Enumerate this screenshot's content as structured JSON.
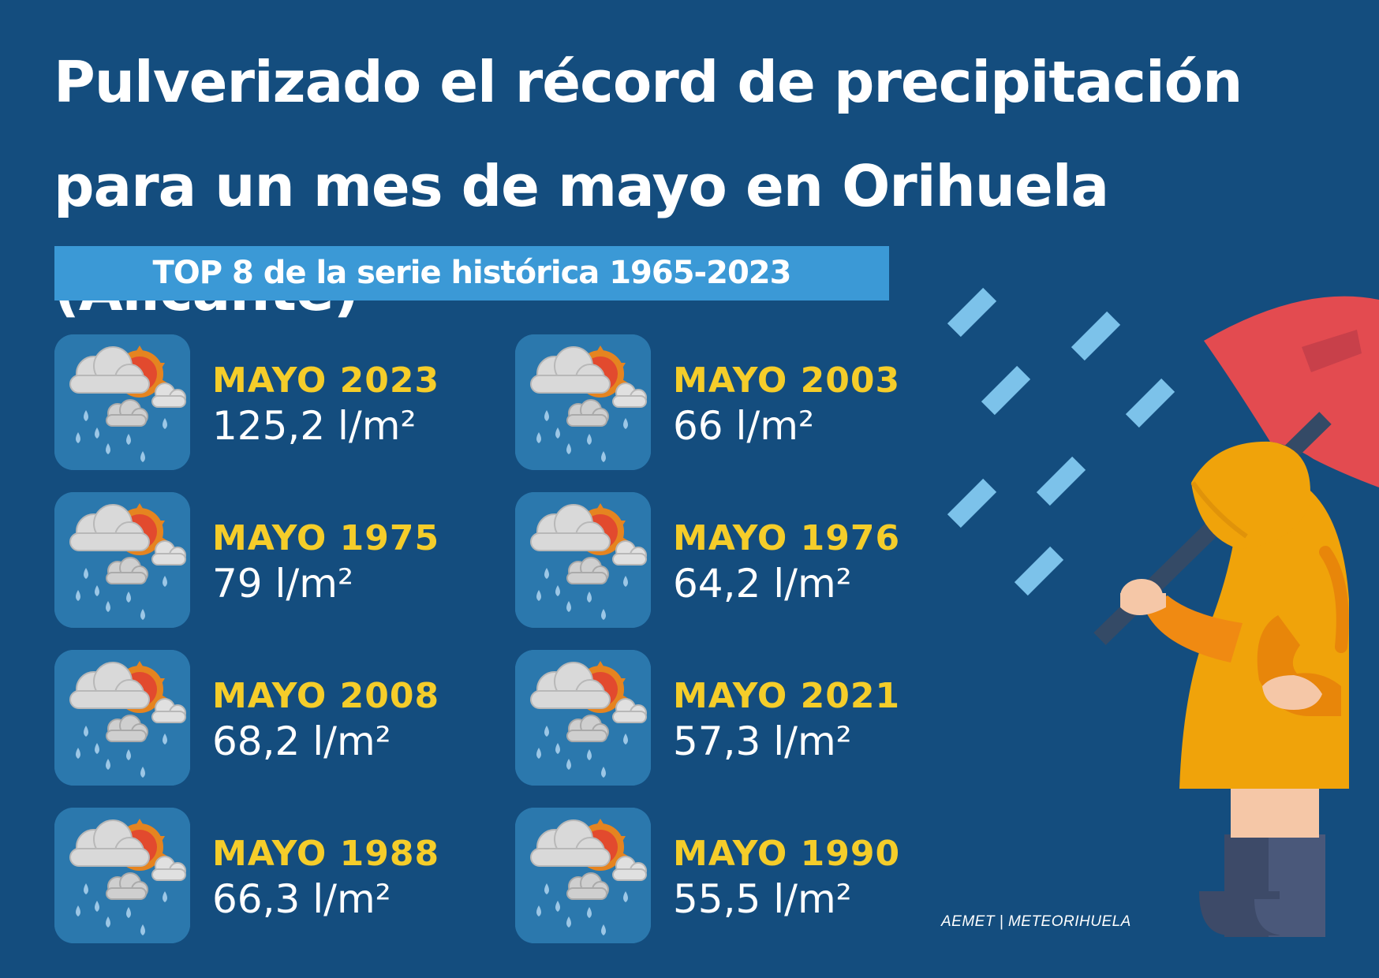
{
  "title": "Pulverizado el récord de precipitación para un mes de mayo en Orihuela (Alicante)",
  "banner": "TOP 8 de la serie histórica 1965-2023",
  "records": [
    {
      "label": "MAYO 2023",
      "value": "125,2 l/m²",
      "amount": 125.2
    },
    {
      "label": "MAYO 2003",
      "value": "66 l/m²",
      "amount": 66
    },
    {
      "label": "MAYO 1975",
      "value": "79 l/m²",
      "amount": 79
    },
    {
      "label": "MAYO 1976",
      "value": "64,2 l/m²",
      "amount": 64.2
    },
    {
      "label": "MAYO 2008",
      "value": "68,2 l/m²",
      "amount": 68.2
    },
    {
      "label": "MAYO 2021",
      "value": "57,3 l/m²",
      "amount": 57.3
    },
    {
      "label": "MAYO 1988",
      "value": "66,3 l/m²",
      "amount": 66.3
    },
    {
      "label": "MAYO 1990",
      "value": "55,5 l/m²",
      "amount": 55.5
    }
  ],
  "tile_icon": "cloud-sun-rain-icon",
  "illustration_icon": "person-raincoat-umbrella-icon",
  "source": "AEMET | METEORIHUELA",
  "colors": {
    "background": "#144d7e",
    "banner": "#3b99d6",
    "label": "#f5cd2a",
    "value": "#ffffff",
    "raincoat": "#f0a30a",
    "umbrella": "#e34b50",
    "raindrop": "#7cc2ea"
  }
}
